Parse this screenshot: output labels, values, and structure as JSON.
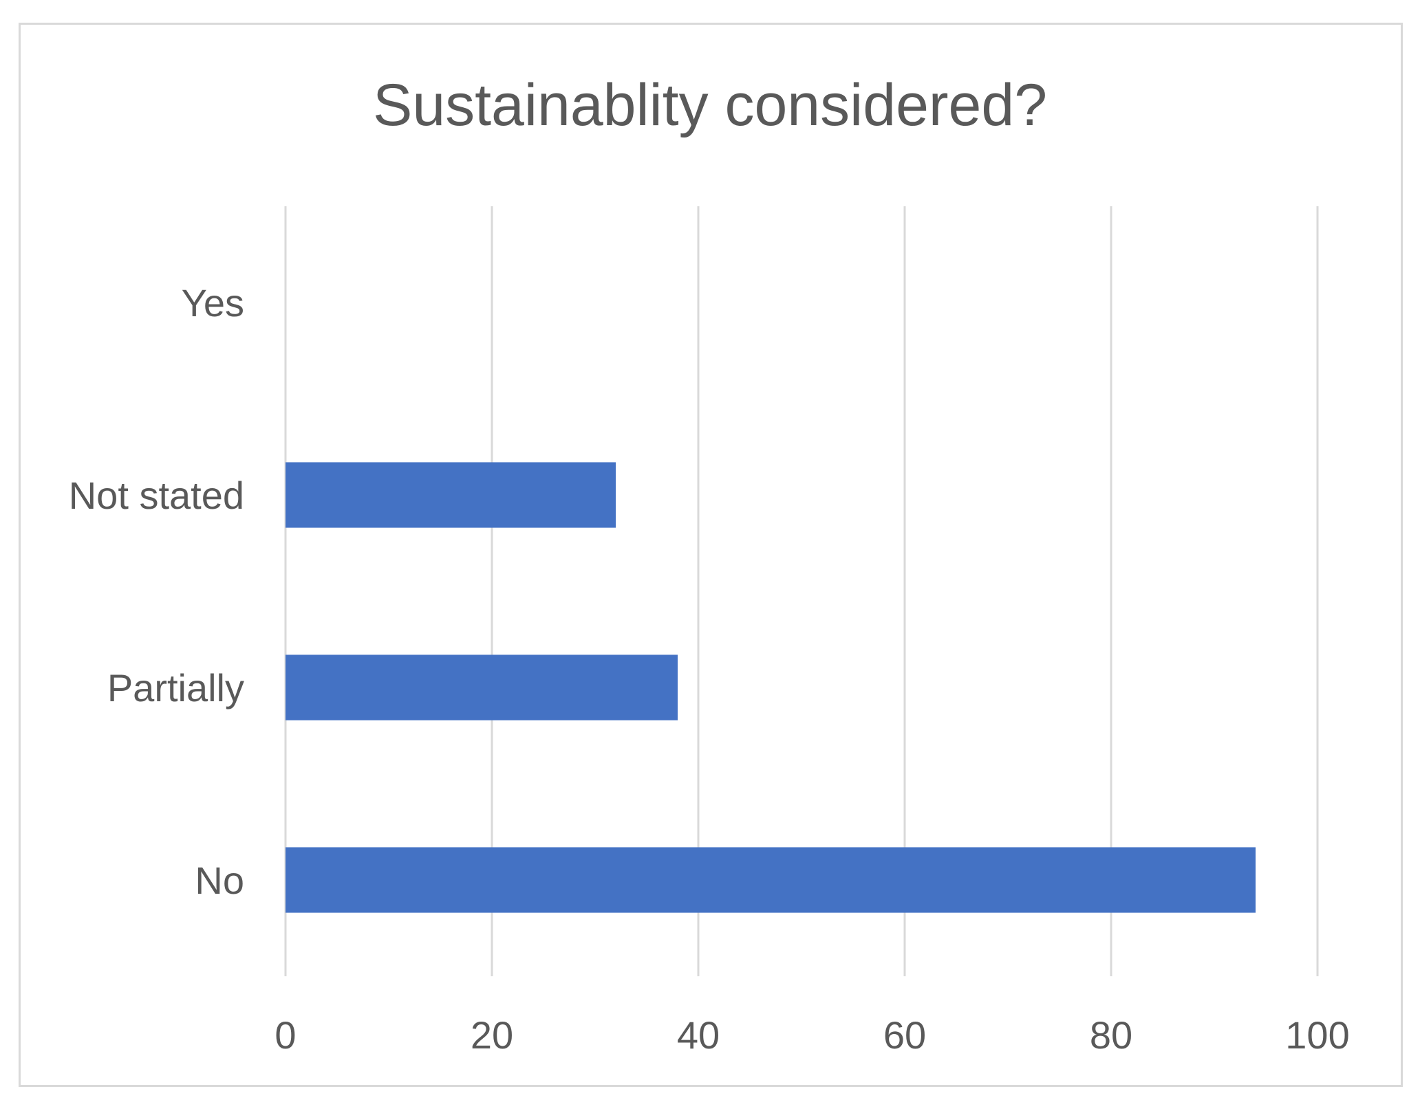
{
  "chart_data": {
    "type": "bar",
    "orientation": "horizontal",
    "title": "Sustainablity considered?",
    "xlabel": "",
    "ylabel": "",
    "categories": [
      "Yes",
      "Not stated",
      "Partially",
      "No"
    ],
    "values": [
      0,
      32,
      38,
      94
    ],
    "xlim": [
      0,
      100
    ],
    "ticks": [
      "0",
      "20",
      "40",
      "60",
      "80",
      "100"
    ],
    "grid": true,
    "bar_color": "#4472c4"
  }
}
